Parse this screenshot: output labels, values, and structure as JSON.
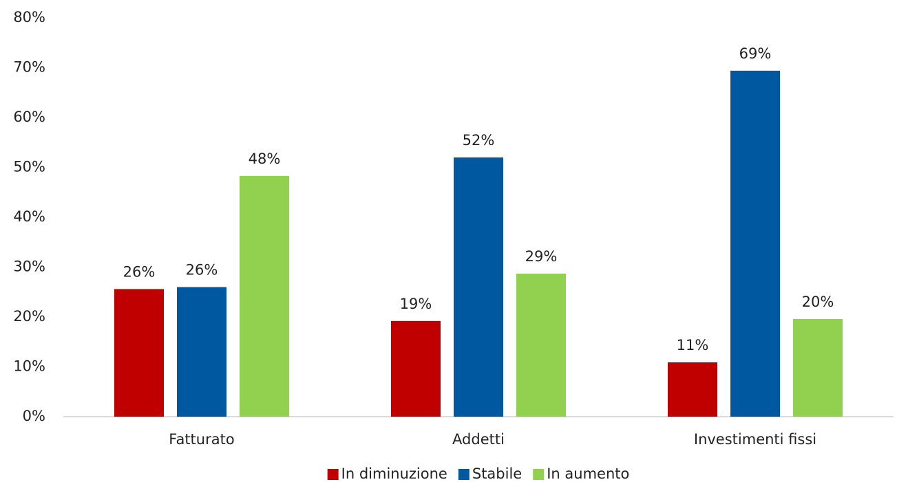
{
  "chart_data": {
    "type": "bar",
    "categories": [
      "Fatturato",
      "Addetti",
      "Investimenti fissi"
    ],
    "series": [
      {
        "name": "In diminuzione",
        "color": "#c00000",
        "values": [
          25.6,
          19.2,
          10.9
        ],
        "value_labels": [
          "26%",
          "19%",
          "11%"
        ]
      },
      {
        "name": "Stabile",
        "color": "#0058a0",
        "values": [
          26,
          52,
          69.4
        ],
        "value_labels": [
          "26%",
          "52%",
          "69%"
        ]
      },
      {
        "name": "In aumento",
        "color": "#92d050",
        "values": [
          48.3,
          28.7,
          19.6
        ],
        "value_labels": [
          "48%",
          "29%",
          "20%"
        ]
      }
    ],
    "ylim": [
      0,
      80
    ],
    "yticks": [
      {
        "value": 0,
        "label": "0%"
      },
      {
        "value": 10,
        "label": "10%"
      },
      {
        "value": 20,
        "label": "20%"
      },
      {
        "value": 30,
        "label": "30%"
      },
      {
        "value": 40,
        "label": "40%"
      },
      {
        "value": 50,
        "label": "50%"
      },
      {
        "value": 60,
        "label": "60%"
      },
      {
        "value": 70,
        "label": "70%"
      },
      {
        "value": 80,
        "label": "80%"
      }
    ],
    "grid": false,
    "legend": "bottom"
  }
}
